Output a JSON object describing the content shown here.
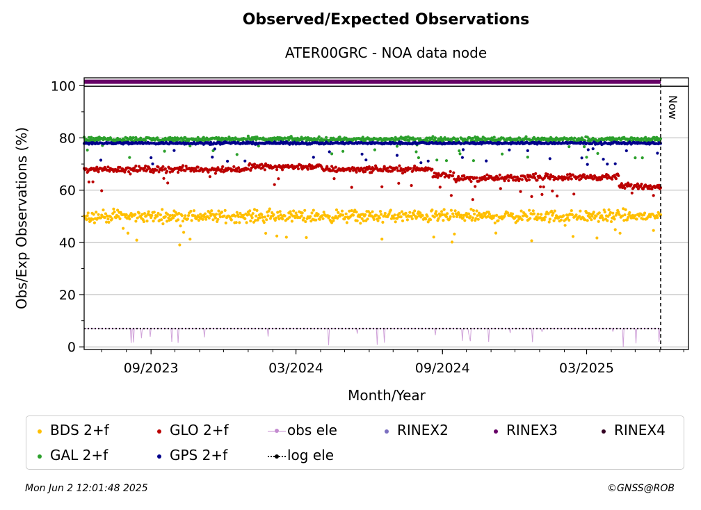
{
  "chart_data": {
    "type": "scatter",
    "title": "Observed/Expected Observations",
    "subtitle": "ATER00GRC - NOA data node",
    "xlabel": "Month/Year",
    "ylabel": "Obs/Exp Observations (%)",
    "x_range": [
      "2023-06-09",
      "2025-06-02"
    ],
    "ylim": [
      0,
      103
    ],
    "y_ticks": [
      "0",
      "20",
      "40",
      "60",
      "80",
      "100"
    ],
    "x_ticks": [
      {
        "date": "2023-09-01",
        "label": "09/2023"
      },
      {
        "date": "2024-03-01",
        "label": "03/2024"
      },
      {
        "date": "2024-09-01",
        "label": "09/2024"
      },
      {
        "date": "2025-03-01",
        "label": "03/2025"
      }
    ],
    "grid": "horizontal",
    "now_label": "Now",
    "now_date": "2025-06-02",
    "legend_position": "bottom",
    "series": [
      {
        "name": "BDS 2+f",
        "color": "#ffbf00",
        "kind": "points",
        "typical": 50,
        "spread": 1.6,
        "segments": [
          {
            "from": "2023-06-09",
            "to": "2025-06-02",
            "level": 50
          }
        ]
      },
      {
        "name": "GLO 2+f",
        "color": "#bb0000",
        "kind": "points",
        "spread": 0.8,
        "segments": [
          {
            "from": "2023-06-09",
            "to": "2024-01-01",
            "level": 68
          },
          {
            "from": "2024-01-01",
            "to": "2024-04-01",
            "level": 69
          },
          {
            "from": "2024-04-01",
            "to": "2024-08-20",
            "level": 68
          },
          {
            "from": "2024-08-20",
            "to": "2024-09-15",
            "level": 66
          },
          {
            "from": "2024-09-15",
            "to": "2024-12-10",
            "level": 64.5
          },
          {
            "from": "2024-12-10",
            "to": "2025-04-10",
            "level": 65
          },
          {
            "from": "2025-04-10",
            "to": "2025-06-02",
            "level": 61.5
          }
        ]
      },
      {
        "name": "obs ele",
        "color": "#c48bd0",
        "kind": "line",
        "typical": 7
      },
      {
        "name": "RINEX2",
        "color": "#7b6fc0",
        "kind": "points"
      },
      {
        "name": "RINEX3",
        "color": "#660066",
        "kind": "band",
        "level": 101.5
      },
      {
        "name": "RINEX4",
        "color": "#330022",
        "kind": "points"
      },
      {
        "name": "GAL 2+f",
        "color": "#2ca02c",
        "kind": "points",
        "typical": 79.5,
        "spread": 0.6,
        "segments": [
          {
            "from": "2023-06-09",
            "to": "2025-06-02",
            "level": 79.5
          }
        ]
      },
      {
        "name": "GPS 2+f",
        "color": "#00008b",
        "kind": "points",
        "typical": 78,
        "spread": 0.3,
        "segments": [
          {
            "from": "2023-06-09",
            "to": "2025-06-02",
            "level": 78
          }
        ]
      },
      {
        "name": "log ele",
        "color": "#000000",
        "kind": "dotted-line",
        "typical": 7
      }
    ]
  },
  "footer": {
    "timestamp": "Mon Jun  2 12:01:48 2025",
    "credit": "©GNSS@ROB"
  }
}
